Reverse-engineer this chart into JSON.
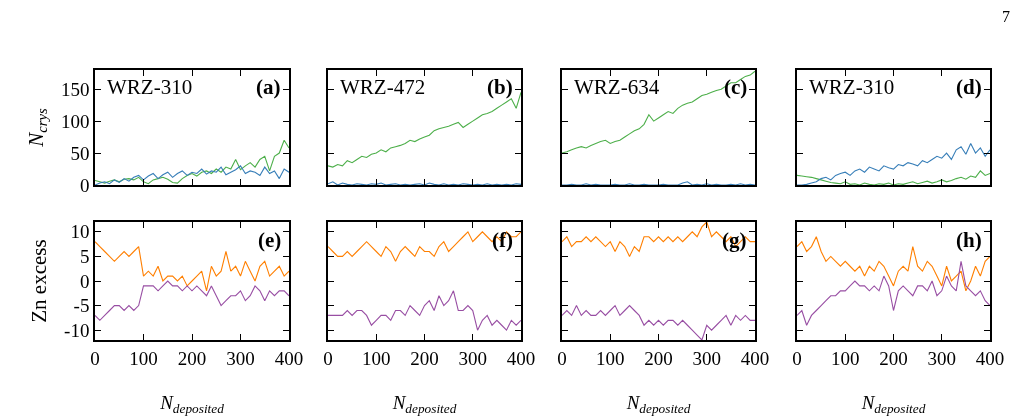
{
  "chart_data": [
    {
      "type": "line",
      "ylabel": "N$_{crys}$",
      "annotations": [
        "WRZ-310",
        "(a)"
      ],
      "x": [
        0,
        10,
        20,
        30,
        40,
        50,
        60,
        70,
        80,
        90,
        100,
        110,
        120,
        130,
        140,
        150,
        160,
        170,
        180,
        190,
        200,
        210,
        220,
        230,
        240,
        250,
        260,
        270,
        280,
        290,
        300,
        310,
        320,
        330,
        340,
        350,
        360,
        370,
        380,
        390,
        400
      ],
      "xlim": [
        0,
        400
      ],
      "xticks": [
        0,
        100,
        200,
        300,
        400
      ],
      "ylim": [
        0,
        180
      ],
      "yticks": [
        0,
        50,
        100,
        150
      ],
      "tick_labels": "y",
      "series": [
        {
          "color": "#4daf4a",
          "values": [
            7,
            5,
            3,
            6,
            8,
            5,
            9,
            10,
            8,
            12,
            5,
            2,
            8,
            10,
            12,
            9,
            4,
            3,
            10,
            15,
            18,
            14,
            20,
            22,
            18,
            25,
            20,
            28,
            25,
            40,
            24,
            30,
            35,
            28,
            40,
            45,
            22,
            45,
            50,
            70,
            58
          ]
        },
        {
          "color": "#377eb8",
          "values": [
            0,
            3,
            5,
            2,
            8,
            4,
            10,
            6,
            12,
            15,
            8,
            14,
            18,
            10,
            16,
            20,
            12,
            18,
            22,
            15,
            20,
            18,
            25,
            17,
            22,
            20,
            28,
            16,
            20,
            24,
            30,
            18,
            22,
            20,
            15,
            28,
            18,
            22,
            10,
            25,
            20
          ]
        }
      ]
    },
    {
      "type": "line",
      "annotations": [
        "WRZ-472",
        "(b)"
      ],
      "x": [
        0,
        10,
        20,
        30,
        40,
        50,
        60,
        70,
        80,
        90,
        100,
        110,
        120,
        130,
        140,
        150,
        160,
        170,
        180,
        190,
        200,
        210,
        220,
        230,
        240,
        250,
        260,
        270,
        280,
        290,
        300,
        310,
        320,
        330,
        340,
        350,
        360,
        370,
        380,
        390,
        400
      ],
      "xlim": [
        0,
        400
      ],
      "xticks": [
        0,
        100,
        200,
        300,
        400
      ],
      "ylim": [
        0,
        180
      ],
      "yticks": [
        0,
        50,
        100,
        150
      ],
      "tick_labels": false,
      "series": [
        {
          "color": "#4daf4a",
          "values": [
            30,
            28,
            32,
            30,
            38,
            35,
            40,
            45,
            43,
            48,
            50,
            55,
            52,
            58,
            60,
            62,
            65,
            70,
            68,
            72,
            75,
            78,
            85,
            88,
            90,
            92,
            95,
            98,
            90,
            95,
            100,
            105,
            110,
            112,
            115,
            120,
            125,
            130,
            135,
            120,
            145
          ]
        },
        {
          "color": "#377eb8",
          "values": [
            2,
            5,
            0,
            3,
            1,
            0,
            2,
            1,
            0,
            2,
            1,
            3,
            0,
            1,
            2,
            0,
            1,
            0,
            1,
            2,
            0,
            3,
            1,
            0,
            2,
            0,
            1,
            0,
            2,
            1,
            0,
            1,
            0,
            2,
            0,
            1,
            0,
            1,
            0,
            2,
            1
          ]
        }
      ]
    },
    {
      "type": "line",
      "annotations": [
        "WRZ-634",
        "(c)"
      ],
      "x": [
        0,
        10,
        20,
        30,
        40,
        50,
        60,
        70,
        80,
        90,
        100,
        110,
        120,
        130,
        140,
        150,
        160,
        170,
        180,
        190,
        200,
        210,
        220,
        230,
        240,
        250,
        260,
        270,
        280,
        290,
        300,
        310,
        320,
        330,
        340,
        350,
        360,
        370,
        380,
        390,
        400
      ],
      "xlim": [
        0,
        400
      ],
      "xticks": [
        0,
        100,
        200,
        300,
        400
      ],
      "ylim": [
        0,
        180
      ],
      "yticks": [
        0,
        50,
        100,
        150
      ],
      "tick_labels": false,
      "series": [
        {
          "color": "#4daf4a",
          "values": [
            50,
            52,
            55,
            58,
            60,
            58,
            62,
            65,
            68,
            70,
            65,
            68,
            70,
            75,
            80,
            85,
            88,
            95,
            110,
            100,
            105,
            110,
            115,
            112,
            120,
            125,
            128,
            130,
            135,
            140,
            142,
            145,
            148,
            150,
            155,
            160,
            160,
            165,
            170,
            172,
            178
          ]
        },
        {
          "color": "#377eb8",
          "values": [
            0,
            0,
            1,
            0,
            0,
            2,
            0,
            1,
            0,
            0,
            0,
            1,
            0,
            0,
            2,
            0,
            0,
            1,
            0,
            0,
            0,
            1,
            0,
            0,
            0,
            3,
            5,
            0,
            1,
            0,
            2,
            0,
            1,
            0,
            0,
            1,
            0,
            2,
            0,
            1,
            0
          ]
        }
      ]
    },
    {
      "type": "line",
      "annotations": [
        "WRZ-310",
        "(d)",
        "7"
      ],
      "x": [
        0,
        10,
        20,
        30,
        40,
        50,
        60,
        70,
        80,
        90,
        100,
        110,
        120,
        130,
        140,
        150,
        160,
        170,
        180,
        190,
        200,
        210,
        220,
        230,
        240,
        250,
        260,
        270,
        280,
        290,
        300,
        310,
        320,
        330,
        340,
        350,
        360,
        370,
        380,
        390,
        400
      ],
      "xlim": [
        0,
        400
      ],
      "xticks": [
        0,
        100,
        200,
        300,
        400
      ],
      "ylim": [
        0,
        180
      ],
      "yticks": [
        0,
        50,
        100,
        150
      ],
      "tick_labels": false,
      "series": [
        {
          "color": "#4daf4a",
          "values": [
            15,
            14,
            13,
            12,
            10,
            8,
            6,
            4,
            3,
            2,
            5,
            1,
            2,
            0,
            3,
            1,
            0,
            2,
            1,
            3,
            0,
            2,
            1,
            3,
            5,
            2,
            4,
            6,
            3,
            5,
            8,
            5,
            7,
            10,
            12,
            9,
            14,
            12,
            22,
            15,
            18
          ]
        },
        {
          "color": "#377eb8",
          "values": [
            0,
            0,
            1,
            3,
            5,
            10,
            12,
            8,
            15,
            18,
            20,
            15,
            22,
            25,
            20,
            28,
            25,
            22,
            30,
            27,
            25,
            32,
            30,
            35,
            33,
            30,
            38,
            35,
            40,
            45,
            42,
            50,
            40,
            55,
            60,
            48,
            65,
            50,
            58,
            45,
            55
          ]
        }
      ]
    },
    {
      "type": "line",
      "xlabel": "N$_{deposited}$",
      "ylabel": "Zn excess",
      "annotations": [
        "(e)"
      ],
      "x": [
        0,
        10,
        20,
        30,
        40,
        50,
        60,
        70,
        80,
        90,
        100,
        110,
        120,
        130,
        140,
        150,
        160,
        170,
        180,
        190,
        200,
        210,
        220,
        230,
        240,
        250,
        260,
        270,
        280,
        290,
        300,
        310,
        320,
        330,
        340,
        350,
        360,
        370,
        380,
        390,
        400
      ],
      "xlim": [
        0,
        400
      ],
      "xticks": [
        0,
        100,
        200,
        300,
        400
      ],
      "ylim": [
        -12,
        12
      ],
      "yticks": [
        -10,
        -5,
        0,
        5,
        10
      ],
      "series": [
        {
          "color": "#ff7f00",
          "values": [
            8,
            7,
            6,
            5,
            4,
            5,
            6,
            5,
            6,
            7,
            1,
            2,
            1,
            3,
            0,
            1,
            1,
            0,
            1,
            -1,
            0,
            1,
            2,
            -2,
            3,
            1,
            2,
            6,
            2,
            3,
            1,
            4,
            2,
            0,
            3,
            4,
            1,
            2,
            3,
            1,
            2
          ]
        },
        {
          "color": "#984ea3",
          "values": [
            -7,
            -8,
            -7,
            -6,
            -5,
            -5,
            -6,
            -5,
            -6,
            -5,
            -1,
            -1,
            -1,
            -2,
            -1,
            0,
            -1,
            -1,
            -2,
            -1,
            -2,
            -1,
            -2,
            -3,
            -1,
            -3,
            -5,
            -4,
            -3,
            -3,
            -2,
            -4,
            -3,
            -1,
            -2,
            -4,
            -2,
            -3,
            -2,
            -2,
            -3
          ]
        }
      ]
    },
    {
      "type": "line",
      "xlabel": "N$_{deposited}$",
      "annotations": [
        "(f)"
      ],
      "x": [
        0,
        10,
        20,
        30,
        40,
        50,
        60,
        70,
        80,
        90,
        100,
        110,
        120,
        130,
        140,
        150,
        160,
        170,
        180,
        190,
        200,
        210,
        220,
        230,
        240,
        250,
        260,
        270,
        280,
        290,
        300,
        310,
        320,
        330,
        340,
        350,
        360,
        370,
        380,
        390,
        400
      ],
      "xlim": [
        0,
        400
      ],
      "xticks": [
        0,
        100,
        200,
        300,
        400
      ],
      "ylim": [
        -12,
        12
      ],
      "yticks": [
        -10,
        -5,
        0,
        5,
        10
      ],
      "tick_labels": "x",
      "series": [
        {
          "color": "#ff7f00",
          "values": [
            7,
            6,
            5,
            5,
            6,
            5,
            6,
            7,
            8,
            7,
            6,
            5,
            7,
            6,
            4,
            6,
            7,
            6,
            5,
            7,
            6,
            6,
            5,
            7,
            8,
            6,
            7,
            8,
            9,
            10,
            8,
            9,
            10,
            9,
            8,
            9,
            8,
            10,
            9,
            9,
            10
          ]
        },
        {
          "color": "#984ea3",
          "values": [
            -7,
            -7,
            -7,
            -7,
            -6,
            -7,
            -6,
            -6,
            -7,
            -9,
            -8,
            -7,
            -7,
            -8,
            -6,
            -6,
            -7,
            -5,
            -6,
            -7,
            -5,
            -4,
            -6,
            -3,
            -5,
            -4,
            -2,
            -6,
            -6,
            -5,
            -6,
            -10,
            -8,
            -7,
            -9,
            -8,
            -9,
            -10,
            -8,
            -9,
            -8
          ]
        }
      ]
    },
    {
      "type": "line",
      "xlabel": "N$_{deposited}$",
      "annotations": [
        "(g)"
      ],
      "x": [
        0,
        10,
        20,
        30,
        40,
        50,
        60,
        70,
        80,
        90,
        100,
        110,
        120,
        130,
        140,
        150,
        160,
        170,
        180,
        190,
        200,
        210,
        220,
        230,
        240,
        250,
        260,
        270,
        280,
        290,
        300,
        310,
        320,
        330,
        340,
        350,
        360,
        370,
        380,
        390,
        400
      ],
      "xlim": [
        0,
        400
      ],
      "xticks": [
        0,
        100,
        200,
        300,
        400
      ],
      "ylim": [
        -12,
        12
      ],
      "yticks": [
        -10,
        -5,
        0,
        5,
        10
      ],
      "tick_labels": "x",
      "series": [
        {
          "color": "#ff7f00",
          "values": [
            8,
            9,
            7,
            8,
            8,
            9,
            8,
            9,
            8,
            7,
            8,
            6,
            8,
            7,
            5,
            7,
            6,
            9,
            9,
            8,
            9,
            8,
            9,
            8,
            9,
            8,
            9,
            10,
            9,
            11,
            12,
            9,
            10,
            9,
            8,
            9,
            7,
            8,
            9,
            8,
            8
          ]
        },
        {
          "color": "#984ea3",
          "values": [
            -7,
            -6,
            -7,
            -5,
            -7,
            -6,
            -7,
            -7,
            -6,
            -7,
            -6,
            -5,
            -7,
            -6,
            -5,
            -6,
            -7,
            -9,
            -8,
            -9,
            -8,
            -9,
            -8,
            -8,
            -9,
            -8,
            -9,
            -10,
            -11,
            -12,
            -9,
            -10,
            -9,
            -8,
            -7,
            -9,
            -7,
            -8,
            -7,
            -8,
            -8
          ]
        }
      ]
    },
    {
      "type": "line",
      "xlabel": "N$_{deposited}$",
      "annotations": [
        "(h)"
      ],
      "x": [
        0,
        10,
        20,
        30,
        40,
        50,
        60,
        70,
        80,
        90,
        100,
        110,
        120,
        130,
        140,
        150,
        160,
        170,
        180,
        190,
        200,
        210,
        220,
        230,
        240,
        250,
        260,
        270,
        280,
        290,
        300,
        310,
        320,
        330,
        340,
        350,
        360,
        370,
        380,
        390,
        400
      ],
      "xlim": [
        0,
        400
      ],
      "xticks": [
        0,
        100,
        200,
        300,
        400
      ],
      "ylim": [
        -12,
        12
      ],
      "yticks": [
        -10,
        -5,
        0,
        5,
        10
      ],
      "tick_labels": "x",
      "series": [
        {
          "color": "#ff7f00",
          "values": [
            7,
            8,
            6,
            7,
            9,
            6,
            4,
            5,
            4,
            3,
            4,
            3,
            2,
            3,
            1,
            3,
            2,
            4,
            3,
            1,
            -1,
            2,
            3,
            2,
            7,
            3,
            2,
            4,
            3,
            1,
            -1,
            3,
            0,
            1,
            2,
            -2,
            0,
            3,
            1,
            4,
            5
          ]
        },
        {
          "color": "#984ea3",
          "values": [
            -7,
            -6,
            -9,
            -7,
            -6,
            -5,
            -4,
            -3,
            -3,
            -2,
            -2,
            -1,
            0,
            -1,
            -1,
            -2,
            -1,
            -2,
            1,
            -1,
            -6,
            -2,
            -1,
            -2,
            -3,
            -1,
            -1,
            -2,
            0,
            -3,
            -2,
            1,
            -1,
            -2,
            4,
            -1,
            -2,
            -3,
            -2,
            -4,
            -5
          ]
        }
      ]
    }
  ]
}
